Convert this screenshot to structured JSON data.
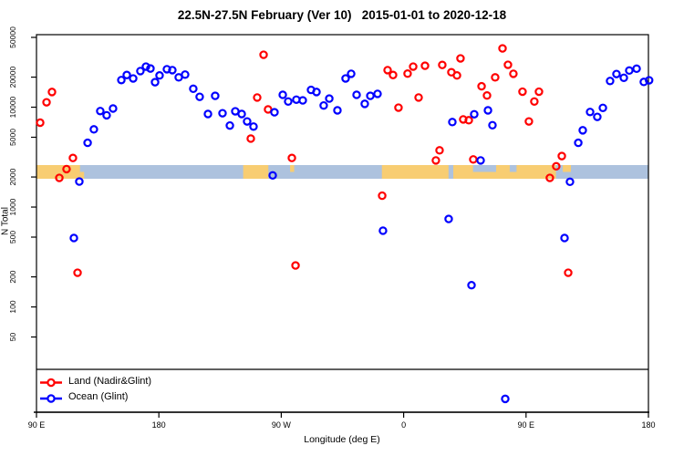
{
  "title": "22.5N-27.5N February (Ver 10)   2015-01-01 to 2020-12-18",
  "axes": {
    "y_label": "N Total",
    "x_label": "Longitude (deg E)",
    "y_ticks": [
      {
        "value": 50000,
        "label": "50000"
      },
      {
        "value": 20000,
        "label": "20000"
      },
      {
        "value": 10000,
        "label": "10000"
      },
      {
        "value": 5000,
        "label": "5000"
      },
      {
        "value": 2000,
        "label": "2000"
      },
      {
        "value": 1000,
        "label": "1000"
      },
      {
        "value": 500,
        "label": "500"
      },
      {
        "value": 200,
        "label": "200"
      },
      {
        "value": 100,
        "label": "100"
      },
      {
        "value": 50,
        "label": "50"
      }
    ],
    "x_ticks": [
      {
        "lon": 90,
        "label": "90 E"
      },
      {
        "lon": 180,
        "label": "180"
      },
      {
        "lon": 270,
        "label": "90 W"
      },
      {
        "lon": 360,
        "label": "0"
      },
      {
        "lon": 450,
        "label": "90 E"
      },
      {
        "lon": 540,
        "label": "180"
      }
    ]
  },
  "legend": [
    {
      "label": "Land (Nadir&Glint)",
      "color": "#ff0000"
    },
    {
      "label": "Ocean (Glint)",
      "color": "#0000ff"
    }
  ],
  "colors": {
    "land_marker": "#ff0000",
    "ocean_marker": "#0000ff",
    "band_land": "#f8cd72",
    "band_ocean": "#adc2de",
    "frame": "#000000"
  },
  "chart_data": {
    "type": "scatter",
    "title": "22.5N-27.5N February (Ver 10)   2015-01-01 to 2020-12-18",
    "xlabel": "Longitude (deg E)",
    "ylabel": "N Total",
    "x_axis": {
      "range": [
        90,
        540
      ],
      "note": "longitude axis wraps eastward: 90E, 180, 90W, 0, 90E, 180"
    },
    "y_axis": {
      "scale": "log",
      "ticks": [
        50,
        100,
        200,
        500,
        1000,
        2000,
        5000,
        10000,
        20000,
        50000
      ]
    },
    "legend_position": "bottom-left",
    "series": [
      {
        "name": "Land (Nadir&Glint)",
        "color": "#ff0000",
        "points": [
          [
            92.7,
            7000
          ],
          [
            97.4,
            11200
          ],
          [
            101.4,
            14200
          ],
          [
            106.8,
            1960
          ],
          [
            112.1,
            2400
          ],
          [
            116.8,
            3100
          ],
          [
            120.2,
            220
          ],
          [
            247.6,
            4850
          ],
          [
            252.3,
            12500
          ],
          [
            257.0,
            33500
          ],
          [
            260.3,
            9500
          ],
          [
            277.8,
            3100
          ],
          [
            280.5,
            260
          ],
          [
            344.2,
            1300
          ],
          [
            348.2,
            23500
          ],
          [
            352.2,
            21000
          ],
          [
            356.2,
            9900
          ],
          [
            362.9,
            21700
          ],
          [
            367.0,
            25500
          ],
          [
            371.0,
            12500
          ],
          [
            375.7,
            26000
          ],
          [
            383.7,
            2930
          ],
          [
            386.4,
            3700
          ],
          [
            388.4,
            26500
          ],
          [
            395.1,
            22400
          ],
          [
            399.2,
            20800
          ],
          [
            401.8,
            30800
          ],
          [
            403.8,
            7550
          ],
          [
            407.9,
            7400
          ],
          [
            411.2,
            3000
          ],
          [
            417.3,
            16200
          ],
          [
            421.3,
            13100
          ],
          [
            427.3,
            19900
          ],
          [
            432.7,
            38800
          ],
          [
            436.7,
            26600
          ],
          [
            440.7,
            21600
          ],
          [
            447.4,
            14300
          ],
          [
            452.1,
            7200
          ],
          [
            456.1,
            11400
          ],
          [
            459.5,
            14300
          ],
          [
            467.5,
            1960
          ],
          [
            472.2,
            2560
          ],
          [
            476.3,
            3240
          ],
          [
            481.0,
            220
          ]
        ]
      },
      {
        "name": "Ocean (Glint)",
        "color": "#0000ff",
        "points": [
          [
            117.5,
            490
          ],
          [
            121.5,
            1800
          ],
          [
            127.6,
            4400
          ],
          [
            132.2,
            6000
          ],
          [
            136.9,
            9150
          ],
          [
            141.6,
            8300
          ],
          [
            146.3,
            9700
          ],
          [
            152.4,
            18700
          ],
          [
            156.4,
            21000
          ],
          [
            161.1,
            19400
          ],
          [
            166.4,
            23000
          ],
          [
            170.5,
            25500
          ],
          [
            173.8,
            24400
          ],
          [
            177.2,
            17800
          ],
          [
            180.5,
            20800
          ],
          [
            185.9,
            24000
          ],
          [
            189.9,
            23500
          ],
          [
            194.6,
            19900
          ],
          [
            199.3,
            21200
          ],
          [
            205.3,
            15300
          ],
          [
            210.0,
            12700
          ],
          [
            216.1,
            8550
          ],
          [
            221.4,
            13000
          ],
          [
            226.8,
            8700
          ],
          [
            232.2,
            6550
          ],
          [
            236.2,
            9100
          ],
          [
            240.9,
            8550
          ],
          [
            244.9,
            7200
          ],
          [
            249.6,
            6400
          ],
          [
            263.7,
            2075
          ],
          [
            265.0,
            8900
          ],
          [
            271.1,
            13300
          ],
          [
            275.1,
            11400
          ],
          [
            281.1,
            11900
          ],
          [
            285.8,
            11700
          ],
          [
            291.9,
            14900
          ],
          [
            295.9,
            14200
          ],
          [
            301.2,
            10400
          ],
          [
            305.3,
            12200
          ],
          [
            311.3,
            9300
          ],
          [
            317.3,
            19400
          ],
          [
            321.4,
            21600
          ],
          [
            325.4,
            13300
          ],
          [
            331.4,
            10800
          ],
          [
            335.5,
            13000
          ],
          [
            340.8,
            13600
          ],
          [
            344.8,
            580
          ],
          [
            393.1,
            760
          ],
          [
            395.8,
            7100
          ],
          [
            409.9,
            165
          ],
          [
            411.9,
            8500
          ],
          [
            416.6,
            2930
          ],
          [
            422.0,
            9300
          ],
          [
            425.3,
            6600
          ],
          [
            434.7,
            12
          ],
          [
            478.3,
            490
          ],
          [
            482.3,
            1790
          ],
          [
            488.4,
            4400
          ],
          [
            491.7,
            5870
          ],
          [
            497.1,
            8960
          ],
          [
            502.4,
            8000
          ],
          [
            506.5,
            9840
          ],
          [
            511.8,
            18300
          ],
          [
            516.5,
            21500
          ],
          [
            521.9,
            19700
          ],
          [
            525.9,
            23300
          ],
          [
            531.3,
            24300
          ],
          [
            536.6,
            17900
          ],
          [
            540.5,
            18600
          ]
        ]
      }
    ],
    "land_ocean_band": {
      "description": "horizontal land/ocean geography strip drawn across the plot at N ~ 2000-2700",
      "segments": [
        {
          "from": 90,
          "to": 540,
          "type": "ocean",
          "part": "full"
        },
        {
          "from": 90,
          "to": 122,
          "type": "land",
          "part": "full"
        },
        {
          "from": 122,
          "to": 125,
          "type": "land",
          "part": "bottom"
        },
        {
          "from": 242,
          "to": 260.5,
          "type": "land",
          "part": "full"
        },
        {
          "from": 276.5,
          "to": 279.5,
          "type": "land",
          "part": "top"
        },
        {
          "from": 344,
          "to": 472,
          "type": "land",
          "part": "full"
        },
        {
          "from": 393,
          "to": 396.5,
          "type": "ocean",
          "part": "full"
        },
        {
          "from": 411,
          "to": 428,
          "type": "ocean",
          "part": "top"
        },
        {
          "from": 438,
          "to": 443,
          "type": "ocean",
          "part": "top"
        },
        {
          "from": 477,
          "to": 483,
          "type": "land",
          "part": "top"
        }
      ]
    }
  }
}
